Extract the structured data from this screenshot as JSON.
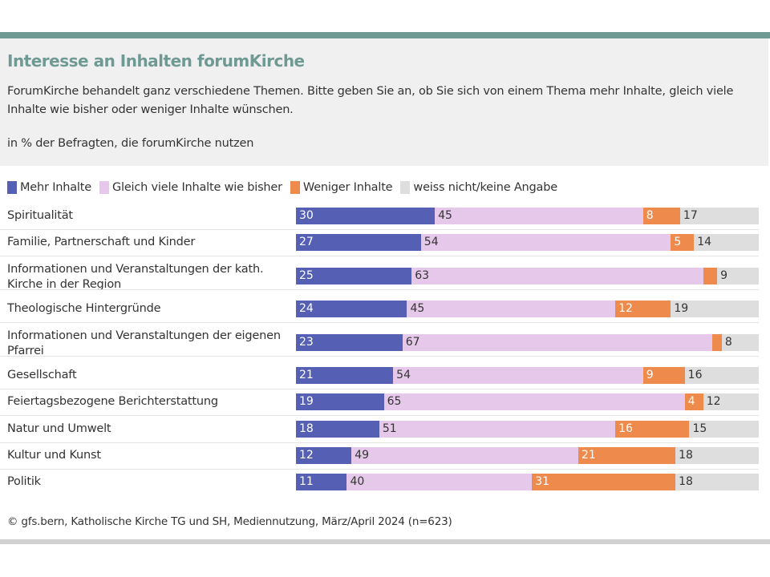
{
  "header": {
    "title": "Interesse an Inhalten forumKirche",
    "question": "ForumKirche behandelt ganz verschiedene Themen. Bitte geben Sie an, ob Sie sich von einem Thema mehr Inhalte, gleich viele Inhalte wie bisher oder weniger Inhalte wünschen.",
    "unit": "in % der Befragten, die forumKirche nutzen"
  },
  "footer": {
    "source": "© gfs.bern, Katholische Kirche TG und SH, Mediennutzung, März/April 2024 (n=623)"
  },
  "chart_data": {
    "type": "bar",
    "orientation": "horizontal",
    "stacked": true,
    "xlim": [
      0,
      100
    ],
    "legend_position": "top-left",
    "categories": [
      "Spiritualität",
      "Familie, Partnerschaft und Kinder",
      "Informationen und Veranstaltungen der kath. Kirche in der Region",
      "Theologische Hintergründe",
      "Informationen und Veranstaltungen der eigenen Pfarrei",
      "Gesellschaft",
      "Feiertagsbezogene Berichterstattung",
      "Natur und Umwelt",
      "Kultur und Kunst",
      "Politik"
    ],
    "series": [
      {
        "name": "Mehr Inhalte",
        "color": "#5560b5",
        "label_color": "#ffffff",
        "values": [
          30,
          27,
          25,
          24,
          23,
          21,
          19,
          18,
          12,
          11
        ]
      },
      {
        "name": "Gleich viele Inhalte wie bisher",
        "color": "#e6c8ea",
        "label_color": "#333333",
        "values": [
          45,
          54,
          63,
          45,
          67,
          54,
          65,
          51,
          49,
          40
        ]
      },
      {
        "name": "Weniger Inhalte",
        "color": "#ee8a4c",
        "label_color": "#ffffff",
        "values": [
          8,
          5,
          3,
          12,
          2,
          9,
          4,
          16,
          21,
          31
        ]
      },
      {
        "name": "weiss nicht/keine Angabe",
        "color": "#dedede",
        "label_color": "#333333",
        "values": [
          17,
          14,
          9,
          19,
          8,
          16,
          12,
          15,
          18,
          18
        ]
      }
    ]
  }
}
